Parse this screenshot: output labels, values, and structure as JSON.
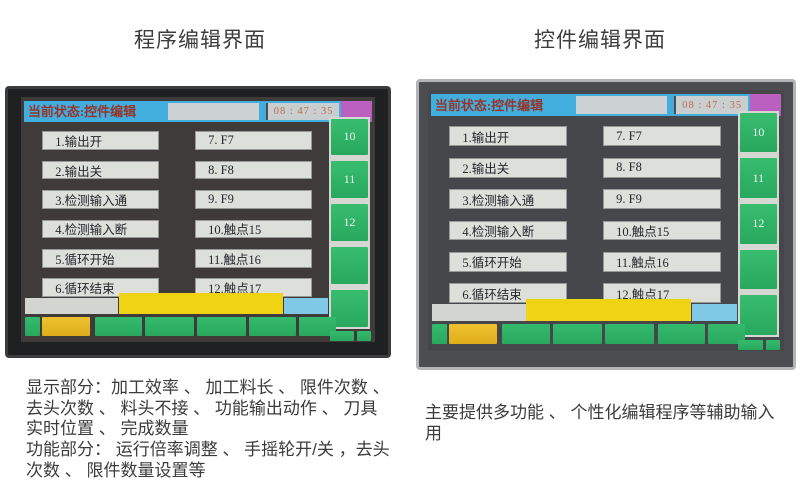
{
  "titles": {
    "left": "程序编辑界面",
    "right": "控件编辑界面"
  },
  "screen": {
    "status": "当前状态:控件编辑",
    "time": "08 : 47 : 35",
    "menu_left": [
      "1.输出开",
      "2.输出关",
      "3.检测输入通",
      "4.检测输入断",
      "5.循环开始",
      "6.循环结束"
    ],
    "menu_right": [
      "7.  F7",
      "8.  F8",
      "9.  F9",
      "10.触点15",
      "11.触点16",
      "12.触点17"
    ],
    "side_buttons": [
      "10",
      "11",
      "12",
      "",
      ""
    ]
  },
  "captions": {
    "left_line1": "显示部分：加工效率 、 加工料长 、 限件次数 、 去头次数 、 料头不接 、 功能输出动作 、 刀具实时位置 、 完成数量",
    "left_line2": "功能部分： 运行倍率调整 、 手摇轮开/关 ，去头次数 、 限件数量设置等",
    "right": "主要提供多功能 、 个性化编辑程序等辅助输入用"
  },
  "colors": {
    "header_blue": "#42aede",
    "status_text_red": "#96352a",
    "magenta_indicator": "#bb60c0",
    "key_green": "#2eb869",
    "message_yellow": "#f0d414",
    "softkey_orange": "#e9bc28",
    "indicator_light_blue": "#7fc9e6",
    "screen_dark_gray": "#3e3b3a"
  }
}
